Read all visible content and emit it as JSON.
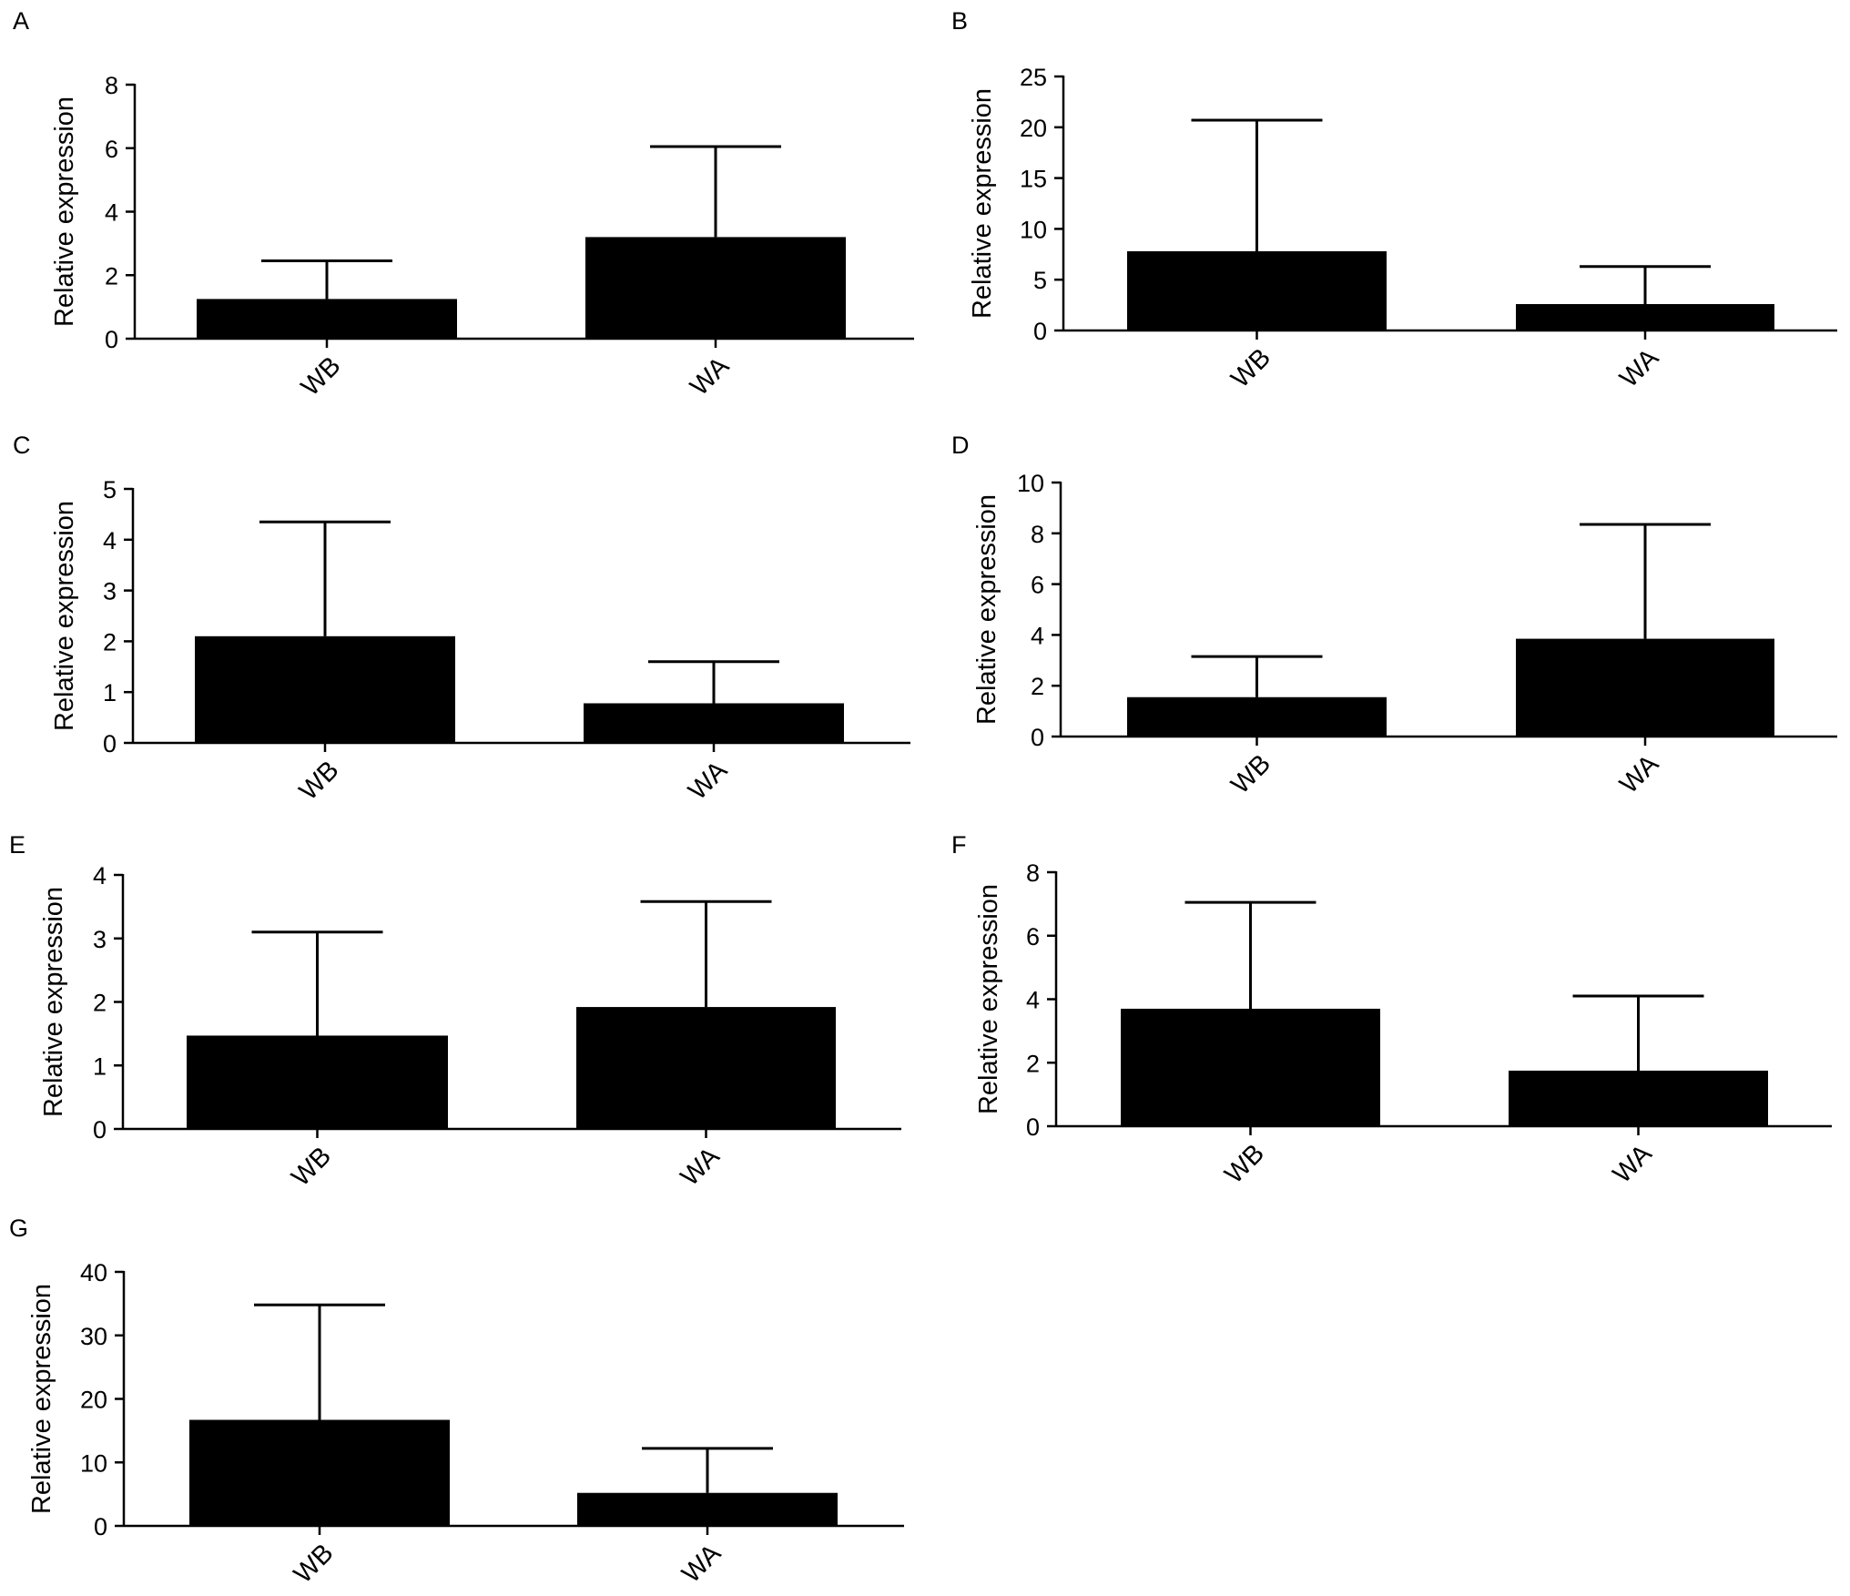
{
  "figure": {
    "background": "#ffffff",
    "bar_color": "#000000"
  },
  "chart_data": [
    {
      "panel": "A",
      "type": "bar",
      "categories": [
        "WB",
        "WA"
      ],
      "values": [
        1.25,
        3.2
      ],
      "errors": [
        1.2,
        2.85
      ],
      "ylabel": "Relative expression",
      "ylim": [
        0,
        8
      ],
      "yticks": [
        "0",
        "2",
        "4",
        "6",
        "8"
      ]
    },
    {
      "panel": "B",
      "type": "bar",
      "categories": [
        "WB",
        "WA"
      ],
      "values": [
        7.8,
        2.6
      ],
      "errors": [
        12.9,
        3.7
      ],
      "ylabel": "Relative expression",
      "ylim": [
        0,
        25
      ],
      "yticks": [
        "0",
        "5",
        "10",
        "15",
        "20",
        "25"
      ]
    },
    {
      "panel": "C",
      "type": "bar",
      "categories": [
        "WB",
        "WA"
      ],
      "values": [
        2.1,
        0.78
      ],
      "errors": [
        2.25,
        0.82
      ],
      "ylabel": "Relative expression",
      "ylim": [
        0,
        5
      ],
      "yticks": [
        "0",
        "1",
        "2",
        "3",
        "4",
        "5"
      ]
    },
    {
      "panel": "D",
      "type": "bar",
      "categories": [
        "WB",
        "WA"
      ],
      "values": [
        1.55,
        3.85
      ],
      "errors": [
        1.6,
        4.5
      ],
      "ylabel": "Relative expression",
      "ylim": [
        0,
        10
      ],
      "yticks": [
        "0",
        "2",
        "4",
        "6",
        "8",
        "10"
      ]
    },
    {
      "panel": "E",
      "type": "bar",
      "categories": [
        "WB",
        "WA"
      ],
      "values": [
        1.47,
        1.92
      ],
      "errors": [
        1.63,
        1.66
      ],
      "ylabel": "Relative expression",
      "ylim": [
        0,
        4
      ],
      "yticks": [
        "0",
        "1",
        "2",
        "3",
        "4"
      ]
    },
    {
      "panel": "F",
      "type": "bar",
      "categories": [
        "WB",
        "WA"
      ],
      "values": [
        3.7,
        1.75
      ],
      "errors": [
        3.35,
        2.35
      ],
      "ylabel": "Relative expression",
      "ylim": [
        0,
        8
      ],
      "yticks": [
        "0",
        "2",
        "4",
        "6",
        "8"
      ]
    },
    {
      "panel": "G",
      "type": "bar",
      "categories": [
        "WB",
        "WA"
      ],
      "values": [
        16.7,
        5.2
      ],
      "errors": [
        18.1,
        7.0
      ],
      "ylabel": "Relative expression",
      "ylim": [
        0,
        40
      ],
      "yticks": [
        "0",
        "10",
        "20",
        "30",
        "40"
      ]
    }
  ]
}
